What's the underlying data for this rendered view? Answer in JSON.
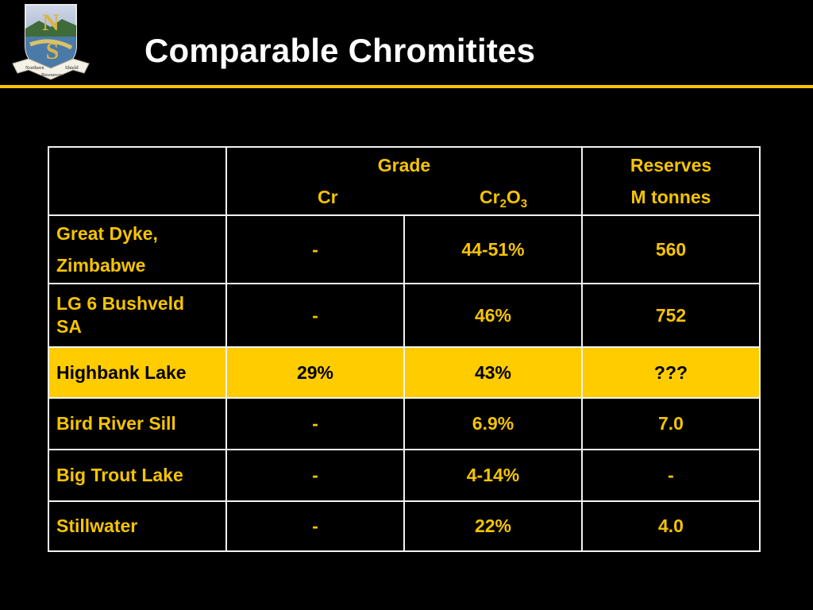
{
  "header": {
    "title": "Comparable Chromitites",
    "logo": {
      "initials": [
        "N",
        "S"
      ],
      "banner": [
        "Northern",
        "Resources",
        "Shield"
      ]
    }
  },
  "table": {
    "header": {
      "grade": "Grade",
      "cr": "Cr",
      "cr2o3": {
        "base1": "Cr",
        "sub1": "2",
        "base2": "O",
        "sub2": "3"
      },
      "reserves": "Reserves",
      "units": "M tonnes"
    },
    "rows": [
      {
        "name": [
          "Great Dyke,",
          "Zimbabwe"
        ],
        "cr": "-",
        "cr2o3": "44-51%",
        "reserves": "560"
      },
      {
        "name": [
          "LG 6 Bushveld",
          "SA"
        ],
        "cr": "-",
        "cr2o3": "46%",
        "reserves": "752"
      },
      {
        "name": [
          "Highbank Lake"
        ],
        "cr": "29%",
        "cr2o3": "43%",
        "reserves": "???"
      },
      {
        "name": [
          "Bird River Sill"
        ],
        "cr": "-",
        "cr2o3": "6.9%",
        "reserves": "7.0"
      },
      {
        "name": [
          "Big Trout Lake"
        ],
        "cr": "-",
        "cr2o3": "4-14%",
        "reserves": "-"
      },
      {
        "name": [
          "Stillwater"
        ],
        "cr": "-",
        "cr2o3": "22%",
        "reserves": "4.0"
      }
    ],
    "highlight_row": "Highbank Lake"
  },
  "colors": {
    "background": "#000000",
    "accent": "#f5c400",
    "highlight": "#ffcc00",
    "title": "#ffffff",
    "border": "#f2f2f2"
  }
}
